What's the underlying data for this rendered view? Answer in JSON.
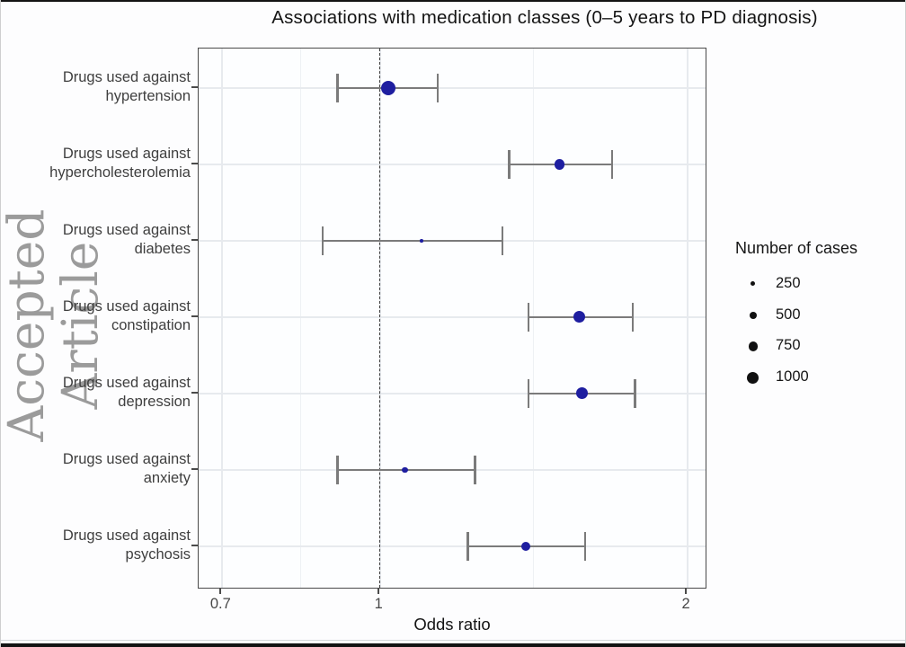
{
  "watermark": "Accepted Article",
  "chart_data": {
    "type": "scatter",
    "subtype": "forest-plot",
    "title": "Associations with medication classes (0–5 years to PD diagnosis)",
    "xlabel": "Odds ratio",
    "x_scale": "log10",
    "x_domain": [
      0.665,
      2.095
    ],
    "x_ticks": [
      {
        "value": 0.7,
        "label": "0.7"
      },
      {
        "value": 1,
        "label": "1"
      },
      {
        "value": 2,
        "label": "2"
      }
    ],
    "x_minor_gridlines": [
      0.837,
      1.414
    ],
    "reference_line_x": 1,
    "grid": true,
    "legend": {
      "title": "Number of cases",
      "position": "right",
      "entries": [
        {
          "cases": 250,
          "label": "250"
        },
        {
          "cases": 500,
          "label": "500"
        },
        {
          "cases": 750,
          "label": "750"
        },
        {
          "cases": 1000,
          "label": "1000"
        }
      ]
    },
    "rows": [
      {
        "label_line1": "Drugs used against",
        "label_line2": "hypertension",
        "odds_ratio": 1.02,
        "ci_low": 0.91,
        "ci_high": 1.14,
        "cases": 1550
      },
      {
        "label_line1": "Drugs used against",
        "label_line2": "hypercholesterolemia",
        "odds_ratio": 1.5,
        "ci_low": 1.34,
        "ci_high": 1.69,
        "cases": 770
      },
      {
        "label_line1": "Drugs used against",
        "label_line2": "diabetes",
        "odds_ratio": 1.1,
        "ci_low": 0.88,
        "ci_high": 1.32,
        "cases": 170
      },
      {
        "label_line1": "Drugs used against",
        "label_line2": "constipation",
        "odds_ratio": 1.57,
        "ci_low": 1.4,
        "ci_high": 1.77,
        "cases": 1000
      },
      {
        "label_line1": "Drugs used against",
        "label_line2": "depression",
        "odds_ratio": 1.58,
        "ci_low": 1.4,
        "ci_high": 1.78,
        "cases": 1000
      },
      {
        "label_line1": "Drugs used against",
        "label_line2": "anxiety",
        "odds_ratio": 1.06,
        "ci_low": 0.91,
        "ci_high": 1.24,
        "cases": 390
      },
      {
        "label_line1": "Drugs used against",
        "label_line2": "psychosis",
        "odds_ratio": 1.39,
        "ci_low": 1.22,
        "ci_high": 1.59,
        "cases": 660
      }
    ],
    "colors": {
      "point": "#1e1ea0",
      "error_bar": "#7b7b7b",
      "major_gridline": "#e7eaee",
      "minor_gridline": "#eef1f4",
      "panel_border": "#4a4a4a",
      "reference_line": "#3d3d3d",
      "watermark": "#8e8e8e",
      "legend_dot": "#111111"
    }
  }
}
